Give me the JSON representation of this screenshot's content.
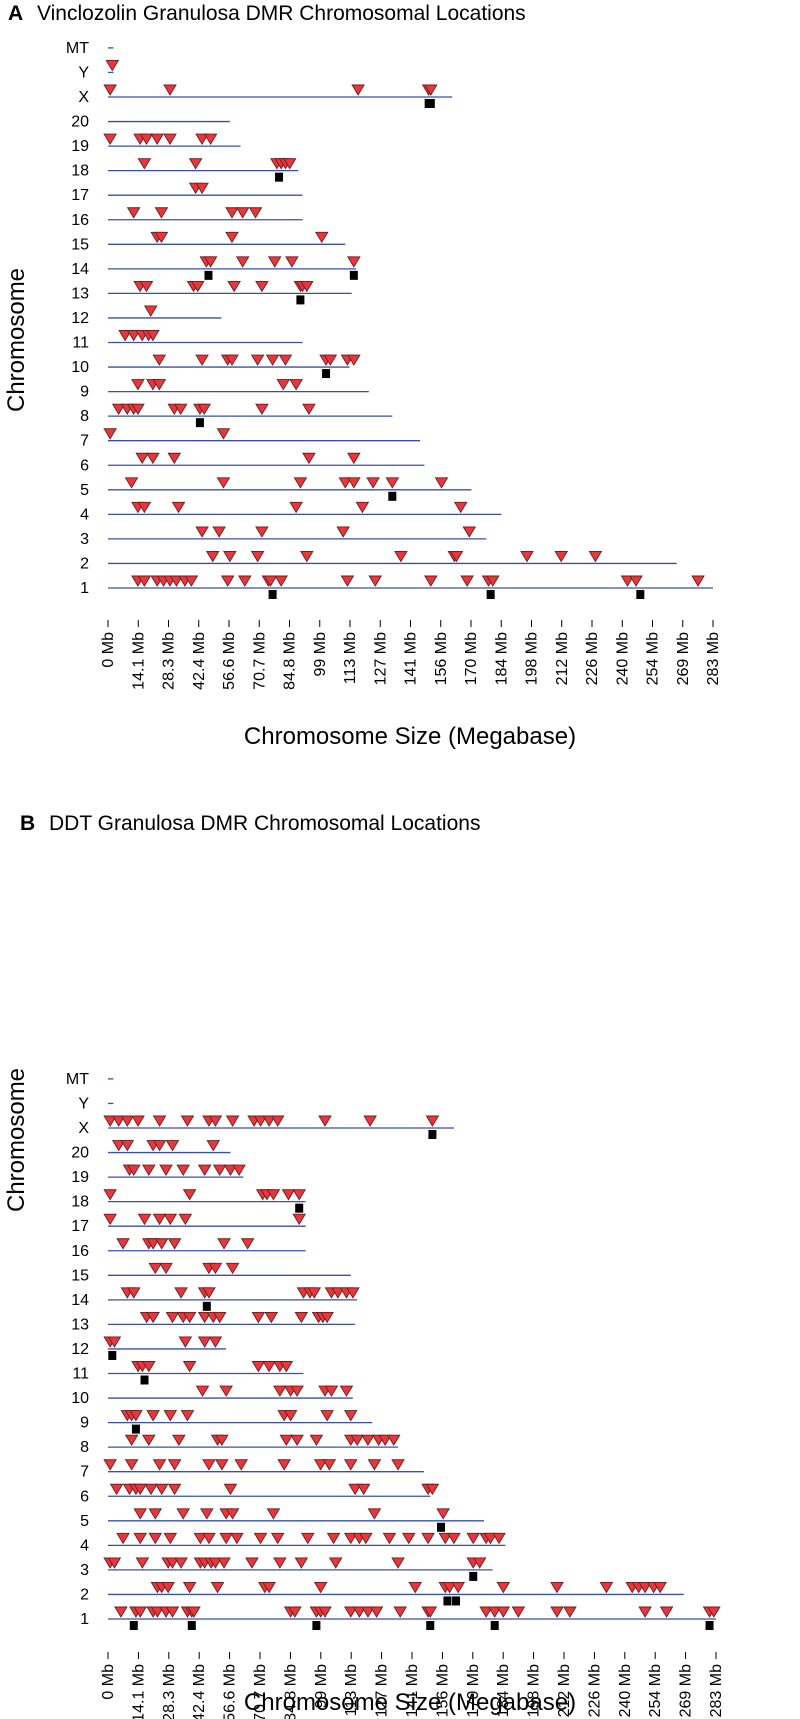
{
  "colors": {
    "chromosome_line": "#3b4fa8",
    "dmr_marker": "#e8363d",
    "epimutation_marker": "#000000"
  },
  "chart_data": [
    {
      "type": "scatter",
      "panel_letter": "A",
      "title": "Vinclozolin Granulosa DMR Chromosomal Locations",
      "xlabel": "Chromosome Size (Megabase)",
      "ylabel": "Chromosome",
      "x_ticks": [
        "0 Mb",
        "14.1 Mb",
        "28.3 Mb",
        "42.4 Mb",
        "56.6 Mb",
        "70.7 Mb",
        "84.8 Mb",
        "99 Mb",
        "113 Mb",
        "127 Mb",
        "141 Mb",
        "156 Mb",
        "170 Mb",
        "184 Mb",
        "198 Mb",
        "212 Mb",
        "226 Mb",
        "240 Mb",
        "254 Mb",
        "269 Mb",
        "283 Mb"
      ],
      "xlim": [
        0,
        283
      ],
      "chromosomes": [
        "1",
        "2",
        "3",
        "4",
        "5",
        "6",
        "7",
        "8",
        "9",
        "10",
        "11",
        "12",
        "13",
        "14",
        "15",
        "16",
        "17",
        "18",
        "19",
        "20",
        "X",
        "Y",
        "MT"
      ],
      "chromosome_lengths": {
        "1": 283,
        "2": 266,
        "3": 177,
        "4": 184,
        "5": 170,
        "6": 148,
        "7": 146,
        "8": 133,
        "9": 122,
        "10": 113,
        "11": 91,
        "12": 53,
        "13": 114,
        "14": 116,
        "15": 111,
        "16": 91,
        "17": 91,
        "18": 89,
        "19": 62,
        "20": 57,
        "X": 161,
        "Y": 0,
        "MT": 0
      },
      "dmrs": {
        "1": [
          14,
          17,
          23,
          26,
          29,
          32,
          36,
          39,
          56,
          64,
          75,
          76,
          81,
          112,
          125,
          151,
          168,
          178,
          180,
          243,
          247,
          276
        ],
        "2": [
          49,
          57,
          70,
          93,
          137,
          162,
          163,
          196,
          212,
          228
        ],
        "3": [
          44,
          52,
          72,
          110,
          169
        ],
        "4": [
          14,
          17,
          33,
          88,
          119,
          165
        ],
        "5": [
          11,
          54,
          90,
          111,
          115,
          124,
          133,
          156
        ],
        "6": [
          16,
          21,
          31,
          94,
          115
        ],
        "7": [
          1,
          54
        ],
        "8": [
          5,
          9,
          12,
          14,
          31,
          34,
          43,
          45,
          72,
          94
        ],
        "9": [
          14,
          21,
          24,
          82,
          88
        ],
        "10": [
          24,
          44,
          56,
          58,
          70,
          77,
          83,
          102,
          104,
          112,
          115
        ],
        "11": [
          8,
          12,
          16,
          19,
          21
        ],
        "12": [
          20
        ],
        "13": [
          15,
          18,
          40,
          42,
          59,
          72,
          90,
          91,
          93
        ],
        "14": [
          46,
          48,
          63,
          78,
          86,
          115
        ],
        "15": [
          23,
          25,
          58,
          100
        ],
        "16": [
          12,
          25,
          58,
          63,
          69
        ],
        "17": [
          41,
          44
        ],
        "18": [
          17,
          41,
          79,
          81,
          83,
          85
        ],
        "19": [
          1,
          15,
          18,
          23,
          29,
          44,
          48
        ],
        "20": [],
        "X": [
          1,
          29,
          117,
          150,
          151
        ],
        "Y": [
          2
        ],
        "MT": []
      },
      "epimutations": {
        "1": [
          77,
          179,
          249
        ],
        "5": [
          133
        ],
        "8": [
          43
        ],
        "10": [
          102
        ],
        "13": [
          90
        ],
        "14": [
          47,
          115
        ],
        "18": [
          80
        ],
        "X": [
          150,
          151
        ]
      }
    },
    {
      "type": "scatter",
      "panel_letter": "B",
      "title": "DDT Granulosa DMR Chromosomal Locations",
      "xlabel": "Chromosome Size (Megabase)",
      "ylabel": "Chromosome",
      "x_ticks": [
        "0 Mb",
        "14.1 Mb",
        "28.3 Mb",
        "42.4 Mb",
        "56.6 Mb",
        "70.7 Mb",
        "84.8 Mb",
        "99 Mb",
        "113 Mb",
        "127 Mb",
        "141 Mb",
        "156 Mb",
        "170 Mb",
        "184 Mb",
        "198 Mb",
        "212 Mb",
        "226 Mb",
        "240 Mb",
        "254 Mb",
        "269 Mb",
        "283 Mb"
      ],
      "xlim": [
        0,
        283
      ],
      "chromosomes": [
        "1",
        "2",
        "3",
        "4",
        "5",
        "6",
        "7",
        "8",
        "9",
        "10",
        "11",
        "12",
        "13",
        "14",
        "15",
        "16",
        "17",
        "18",
        "19",
        "20",
        "X",
        "Y",
        "MT"
      ],
      "chromosome_lengths": {
        "1": 283,
        "2": 268,
        "3": 179,
        "4": 185,
        "5": 175,
        "6": 150,
        "7": 147,
        "8": 135,
        "9": 123,
        "10": 114,
        "11": 91,
        "12": 55,
        "13": 115,
        "14": 116,
        "15": 113,
        "16": 92,
        "17": 92,
        "18": 92,
        "19": 63,
        "20": 57,
        "X": 161,
        "Y": 0,
        "MT": 0
      },
      "dmrs": {
        "1": [
          6,
          13,
          15,
          21,
          23,
          27,
          30,
          37,
          39,
          40,
          85,
          87,
          97,
          99,
          101,
          113,
          117,
          121,
          125,
          136,
          149,
          150,
          176,
          180,
          184,
          191,
          209,
          215,
          250,
          260,
          280,
          282
        ],
        "2": [
          23,
          25,
          28,
          38,
          51,
          73,
          75,
          99,
          143,
          157,
          159,
          163,
          184,
          209,
          232,
          244,
          247,
          250,
          254,
          257
        ],
        "3": [
          1,
          3,
          16,
          28,
          30,
          34,
          43,
          45,
          48,
          50,
          54,
          67,
          80,
          90,
          106,
          135,
          170,
          173
        ],
        "4": [
          7,
          15,
          22,
          29,
          43,
          47,
          55,
          60,
          71,
          79,
          93,
          105,
          113,
          117,
          120,
          131,
          140,
          149,
          157,
          161,
          170,
          176,
          178,
          182
        ],
        "5": [
          15,
          22,
          35,
          46,
          55,
          58,
          77,
          124,
          156
        ],
        "6": [
          4,
          10,
          13,
          15,
          20,
          25,
          31,
          57,
          115,
          119,
          149,
          151
        ],
        "7": [
          1,
          11,
          24,
          31,
          47,
          53,
          62,
          82,
          99,
          103,
          113,
          124,
          135
        ],
        "8": [
          11,
          19,
          33,
          51,
          53,
          83,
          88,
          97,
          113,
          116,
          121,
          126,
          129,
          133
        ],
        "9": [
          9,
          11,
          13,
          21,
          29,
          37,
          82,
          85,
          102,
          113
        ],
        "10": [
          44,
          55,
          80,
          85,
          88,
          101,
          104,
          111
        ],
        "11": [
          14,
          16,
          19,
          38,
          70,
          75,
          80,
          83
        ],
        "12": [
          1,
          3,
          36,
          45,
          50
        ],
        "13": [
          18,
          21,
          30,
          35,
          38,
          45,
          49,
          52,
          70,
          76,
          90,
          98,
          100,
          102
        ],
        "14": [
          9,
          12,
          34,
          45,
          47,
          91,
          94,
          96,
          104,
          107,
          111,
          114
        ],
        "15": [
          22,
          27,
          47,
          50,
          58
        ],
        "16": [
          7,
          19,
          21,
          25,
          31,
          54,
          65
        ],
        "17": [
          1,
          17,
          24,
          29,
          36,
          89
        ],
        "18": [
          1,
          38,
          72,
          74,
          77,
          84,
          89
        ],
        "19": [
          10,
          12,
          19,
          27,
          35,
          45,
          52,
          57,
          61
        ],
        "20": [
          5,
          9,
          21,
          24,
          30,
          49
        ],
        "X": [
          1,
          5,
          9,
          14,
          24,
          37,
          47,
          50,
          58,
          68,
          71,
          75,
          79,
          101,
          122,
          151
        ],
        "Y": [],
        "MT": []
      },
      "epimutations": {
        "1": [
          12,
          39,
          97,
          150,
          180,
          280
        ],
        "2": [
          158,
          162
        ],
        "3": [
          170
        ],
        "5": [
          155
        ],
        "9": [
          13
        ],
        "11": [
          17
        ],
        "12": [
          2
        ],
        "14": [
          46
        ],
        "18": [
          89
        ],
        "X": [
          151
        ]
      }
    }
  ]
}
